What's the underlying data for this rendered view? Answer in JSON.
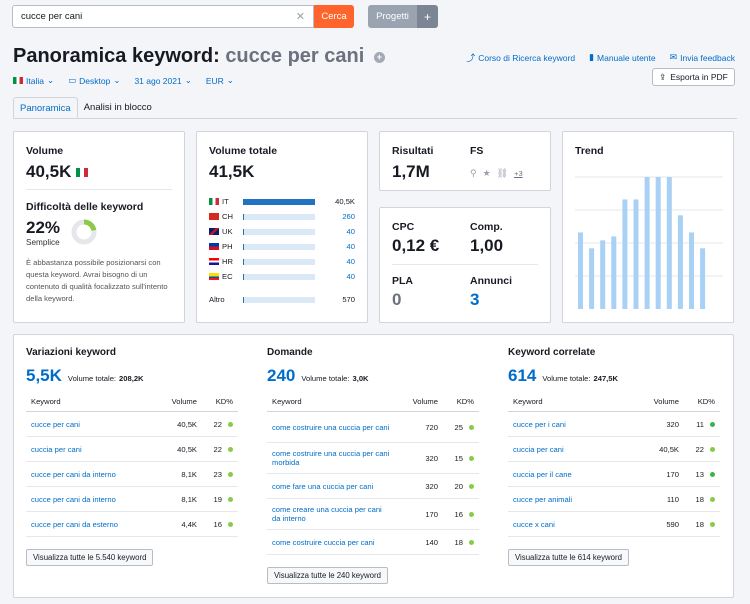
{
  "search": {
    "value": "cucce per cani",
    "button": "Cerca"
  },
  "projects": {
    "label": "Progetti",
    "plus": "+"
  },
  "title": {
    "prefix": "Panoramica keyword:",
    "keyword": "cucce per cani"
  },
  "links": {
    "course": "Corso di Ricerca keyword",
    "manual": "Manuale utente",
    "feedback": "Invia feedback",
    "export": "Esporta in PDF"
  },
  "filters": {
    "country": "Italia",
    "device": "Desktop",
    "date": "31 ago 2021",
    "currency": "EUR"
  },
  "tabs": [
    "Panoramica",
    "Analisi in blocco"
  ],
  "volume": {
    "label": "Volume",
    "value": "40,5K"
  },
  "difficulty": {
    "label": "Difficoltà delle keyword",
    "value": "22%",
    "level": "Semplice",
    "percent": 22,
    "description": "È abbastanza possibile posizionarsi con questa keyword. Avrai bisogno di un contenuto di qualità focalizzato sull'intento della keyword."
  },
  "total_volume": {
    "label": "Volume totale",
    "value": "41,5K",
    "rows": [
      {
        "code": "IT",
        "value": "40,5K",
        "fraction": 1.0
      },
      {
        "code": "CH",
        "value": "260",
        "fraction": 0.01
      },
      {
        "code": "UK",
        "value": "40",
        "fraction": 0.004
      },
      {
        "code": "PH",
        "value": "40",
        "fraction": 0.004
      },
      {
        "code": "HR",
        "value": "40",
        "fraction": 0.004
      },
      {
        "code": "EC",
        "value": "40",
        "fraction": 0.004
      },
      {
        "code": "Altro",
        "value": "570",
        "fraction": 0.02
      }
    ]
  },
  "results": {
    "label": "Risultati",
    "value": "1,7M"
  },
  "fs": {
    "label": "FS",
    "more": "+3"
  },
  "cpc": {
    "label": "CPC",
    "value": "0,12 €"
  },
  "comp": {
    "label": "Comp.",
    "value": "1,00"
  },
  "pla": {
    "label": "PLA",
    "value": "0"
  },
  "ads": {
    "label": "Annunci",
    "value": "3"
  },
  "trend": {
    "label": "Trend"
  },
  "chart_data": {
    "type": "bar",
    "title": "Trend",
    "values": [
      0.58,
      0.46,
      0.52,
      0.55,
      0.83,
      0.83,
      1.0,
      1.0,
      1.0,
      0.71,
      0.58,
      0.46
    ],
    "ylim": [
      0,
      1
    ],
    "grid": true
  },
  "variations": {
    "title": "Variazioni keyword",
    "value": "5,5K",
    "total_label": "Volume totale:",
    "total": "208,2K",
    "headers": [
      "Keyword",
      "Volume",
      "KD%"
    ],
    "rows": [
      {
        "kw": "cucce per cani",
        "vol": "40,5K",
        "kd": "22"
      },
      {
        "kw": "cuccia per cani",
        "vol": "40,5K",
        "kd": "22"
      },
      {
        "kw": "cucce per cani da interno",
        "vol": "8,1K",
        "kd": "23"
      },
      {
        "kw": "cucce per cani da interno",
        "vol": "8,1K",
        "kd": "19"
      },
      {
        "kw": "cucce per cani da esterno",
        "vol": "4,4K",
        "kd": "16"
      }
    ],
    "button": "Visualizza tutte le 5.540 keyword"
  },
  "questions": {
    "title": "Domande",
    "value": "240",
    "total_label": "Volume totale:",
    "total": "3,0K",
    "headers": [
      "Keyword",
      "Volume",
      "KD%"
    ],
    "rows": [
      {
        "kw": "come costruire una cuccia per cani",
        "vol": "720",
        "kd": "25"
      },
      {
        "kw": "come costruire una cuccia per cani morbida",
        "vol": "320",
        "kd": "15"
      },
      {
        "kw": "come fare una cuccia per cani",
        "vol": "320",
        "kd": "20"
      },
      {
        "kw": "come creare una cuccia per cani da interno",
        "vol": "170",
        "kd": "16"
      },
      {
        "kw": "come costruire cuccia per cani",
        "vol": "140",
        "kd": "18"
      }
    ],
    "button": "Visualizza tutte le 240 keyword"
  },
  "related": {
    "title": "Keyword correlate",
    "value": "614",
    "total_label": "Volume totale:",
    "total": "247,5K",
    "headers": [
      "Keyword",
      "Volume",
      "KD%"
    ],
    "rows": [
      {
        "kw": "cucce per i cani",
        "vol": "320",
        "kd": "11"
      },
      {
        "kw": "cuccia per cani",
        "vol": "40,5K",
        "kd": "22"
      },
      {
        "kw": "cuccia per il cane",
        "vol": "170",
        "kd": "13"
      },
      {
        "kw": "cucce per animali",
        "vol": "110",
        "kd": "18"
      },
      {
        "kw": "cucce x cani",
        "vol": "590",
        "kd": "18"
      }
    ],
    "button": "Visualizza tutte le 614 keyword"
  },
  "colors": {
    "accent": "#006dca",
    "orange": "#ff642d",
    "green": "#8bc94a",
    "bar": "#a9d0f5",
    "bar_strong": "#2272c3"
  }
}
